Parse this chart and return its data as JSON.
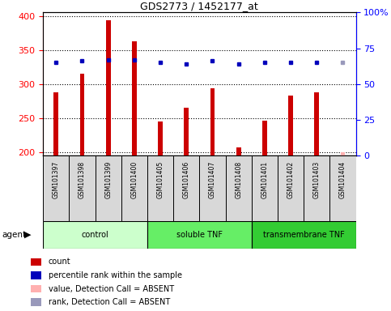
{
  "title": "GDS2773 / 1452177_at",
  "samples": [
    "GSM101397",
    "GSM101398",
    "GSM101399",
    "GSM101400",
    "GSM101405",
    "GSM101406",
    "GSM101407",
    "GSM101408",
    "GSM101401",
    "GSM101402",
    "GSM101403",
    "GSM101404"
  ],
  "counts": [
    288,
    315,
    393,
    363,
    245,
    265,
    294,
    207,
    246,
    283,
    288,
    200
  ],
  "percentile_ranks": [
    65,
    66,
    67,
    67,
    65,
    64,
    66,
    64,
    65,
    65,
    65,
    65
  ],
  "is_absent": [
    false,
    false,
    false,
    false,
    false,
    false,
    false,
    false,
    false,
    false,
    false,
    true
  ],
  "ylim_left": [
    195,
    405
  ],
  "ylim_right": [
    0,
    100
  ],
  "yticks_left": [
    200,
    250,
    300,
    350,
    400
  ],
  "yticks_right": [
    0,
    25,
    50,
    75,
    100
  ],
  "bar_color": "#CC0000",
  "bar_absent_color": "#FFB0B0",
  "dot_color": "#0000BB",
  "dot_absent_color": "#9999BB",
  "groups": [
    {
      "label": "control",
      "start": 0,
      "end": 4,
      "color": "#CCFFCC"
    },
    {
      "label": "soluble TNF",
      "start": 4,
      "end": 8,
      "color": "#66EE66"
    },
    {
      "label": "transmembrane TNF",
      "start": 8,
      "end": 12,
      "color": "#33CC33"
    }
  ],
  "legend_items": [
    {
      "color": "#CC0000",
      "label": "count",
      "absent": false
    },
    {
      "color": "#0000BB",
      "label": "percentile rank within the sample",
      "absent": false
    },
    {
      "color": "#FFB0B0",
      "label": "value, Detection Call = ABSENT",
      "absent": true
    },
    {
      "color": "#9999BB",
      "label": "rank, Detection Call = ABSENT",
      "absent": true
    }
  ],
  "bar_width": 0.18,
  "sample_box_color": "#D8D8D8",
  "plot_bg": "#FFFFFF",
  "border_color": "#000000"
}
